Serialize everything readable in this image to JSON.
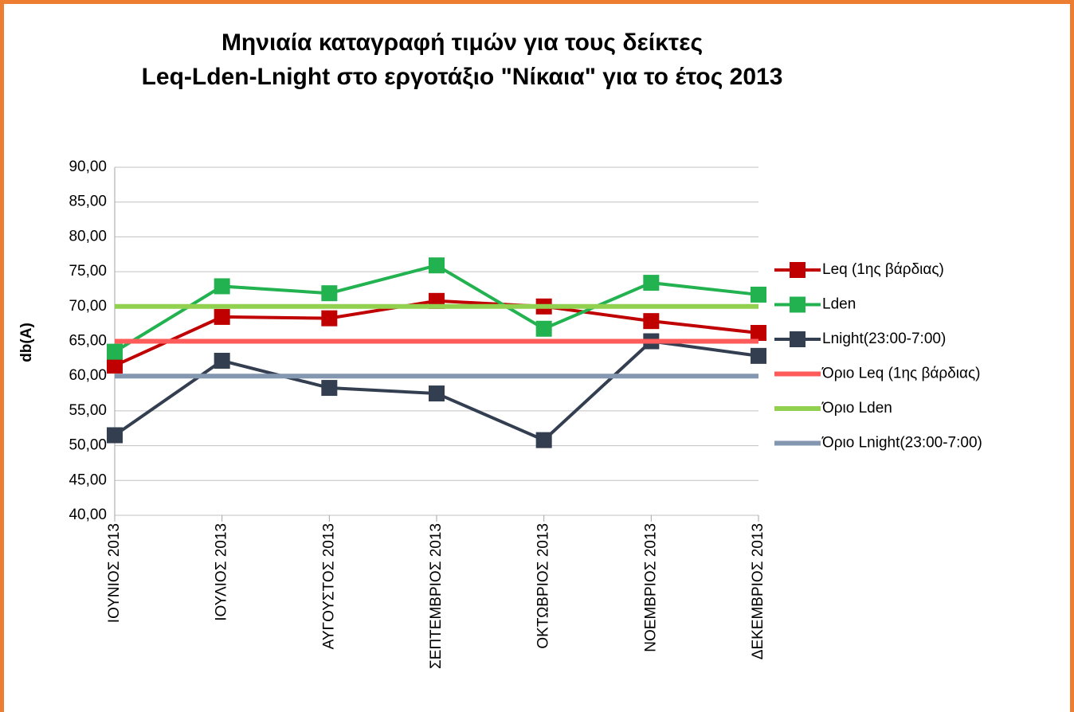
{
  "chart_data": {
    "type": "line",
    "title": [
      "Μηνιαία καταγραφή τιμών για τους δείκτες",
      "Leq-Lden-Lnight στο εργοτάξιο \"Νίκαια\" για το έτος 2013"
    ],
    "y_label": "db(A)",
    "categories": [
      "ΙΟΥΝΙΟΣ 2013",
      "ΙΟΥΛΙΟΣ 2013",
      "ΑΥΓΟΥΣΤΟΣ 2013",
      "ΣΕΠΤΕΜΒΡΙΟΣ 2013",
      "ΟΚΤΩΒΡΙΟΣ 2013",
      "ΝΟΕΜΒΡΙΟΣ 2013",
      "ΔΕΚΕΜΒΡΙΟΣ 2013"
    ],
    "series": [
      {
        "name": "Leq (1ης βάρδιας)",
        "color": "#c00000",
        "marker": "square",
        "values": [
          61.5,
          68.5,
          68.3,
          70.8,
          70.0,
          67.9,
          66.2
        ]
      },
      {
        "name": "Lden",
        "color": "#22b250",
        "marker": "square",
        "values": [
          63.5,
          72.9,
          71.9,
          75.9,
          66.8,
          73.4,
          71.7
        ]
      },
      {
        "name": "Lnight(23:00-7:00)",
        "color": "#333f50",
        "marker": "square",
        "values": [
          51.5,
          62.2,
          58.3,
          57.5,
          50.8,
          65.0,
          62.9
        ]
      },
      {
        "name": "Όριο Leq (1ης βάρδιας)",
        "color": "#ff5b5b",
        "values": [
          65,
          65,
          65,
          65,
          65,
          65,
          65
        ]
      },
      {
        "name": "Όριο Lden",
        "color": "#92d050",
        "values": [
          70,
          70,
          70,
          70,
          70,
          70,
          70
        ]
      },
      {
        "name": "Όριο Lnight(23:00-7:00)",
        "color": "#8497b0",
        "values": [
          60,
          60,
          60,
          60,
          60,
          60,
          60
        ]
      }
    ],
    "ylim": [
      40,
      90
    ],
    "yticks": [
      {
        "value": 40,
        "label": "40,00"
      },
      {
        "value": 45,
        "label": "45,00"
      },
      {
        "value": 50,
        "label": "50,00"
      },
      {
        "value": 55,
        "label": "55,00"
      },
      {
        "value": 60,
        "label": "60,00"
      },
      {
        "value": 65,
        "label": "65,00"
      },
      {
        "value": 70,
        "label": "70,00"
      },
      {
        "value": 75,
        "label": "75,00"
      },
      {
        "value": 80,
        "label": "80,00"
      },
      {
        "value": 85,
        "label": "85,00"
      },
      {
        "value": 90,
        "label": "90,00"
      }
    ],
    "grid": true,
    "legend": "right"
  }
}
